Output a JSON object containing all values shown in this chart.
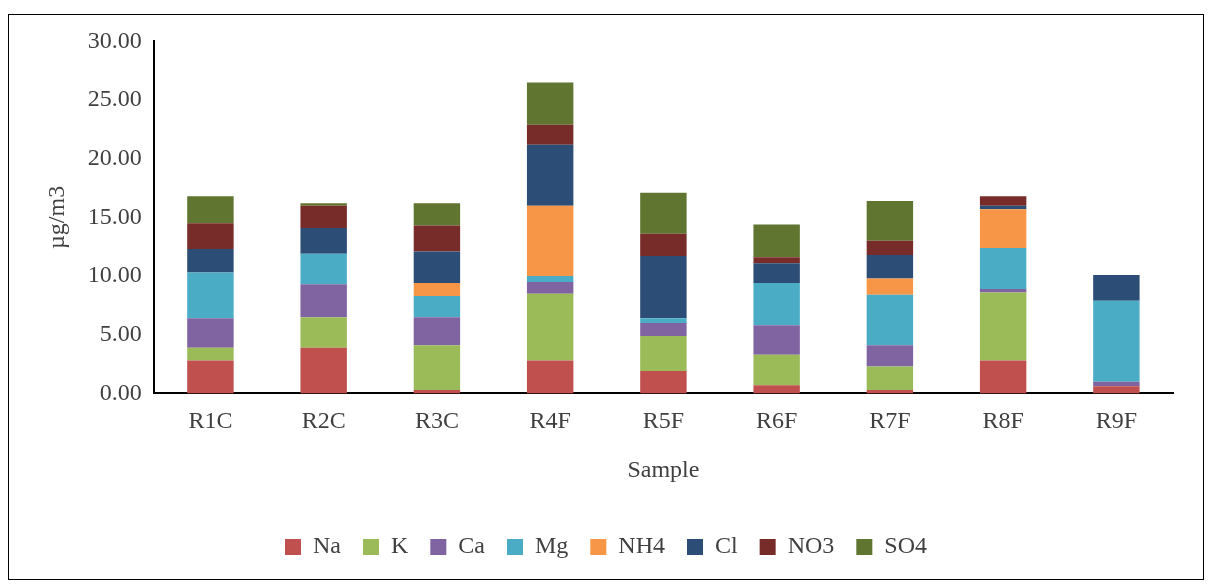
{
  "chart_data": {
    "type": "bar",
    "stacked": true,
    "xlabel": "Sample",
    "ylabel": "µg/m3",
    "categories": [
      "R1C",
      "R2C",
      "R3C",
      "R4F",
      "R5F",
      "R6F",
      "R7F",
      "R8F",
      "R9F"
    ],
    "ylim": [
      0,
      30
    ],
    "yticks": [
      {
        "value": 0,
        "label": "0.00"
      },
      {
        "value": 5,
        "label": "5.00"
      },
      {
        "value": 10,
        "label": "10.00"
      },
      {
        "value": 15,
        "label": "15.00"
      },
      {
        "value": 20,
        "label": "20.00"
      },
      {
        "value": 25,
        "label": "25.00"
      },
      {
        "value": 30,
        "label": "30.00"
      }
    ],
    "grid": false,
    "legend": "bottom",
    "series": [
      {
        "name": "Na",
        "color": "#c0504d",
        "values": [
          2.8,
          3.9,
          0.3,
          2.8,
          1.9,
          0.7,
          0.3,
          2.8,
          0.6
        ]
      },
      {
        "name": "K",
        "color": "#9bbb59",
        "values": [
          1.1,
          2.6,
          3.8,
          5.7,
          3.0,
          2.6,
          2.0,
          5.8,
          0
        ]
      },
      {
        "name": "Ca",
        "color": "#8064a2",
        "values": [
          2.5,
          2.8,
          2.4,
          1.0,
          1.1,
          2.5,
          1.8,
          0.3,
          0.4
        ]
      },
      {
        "name": "Mg",
        "color": "#4bacc6",
        "values": [
          3.9,
          2.6,
          1.8,
          0.5,
          0.4,
          3.6,
          4.3,
          3.5,
          6.9
        ]
      },
      {
        "name": "NH4",
        "color": "#f79646",
        "values": [
          0,
          0,
          1.1,
          6.0,
          0,
          0,
          1.4,
          3.3,
          0
        ]
      },
      {
        "name": "Cl",
        "color": "#2c4d75",
        "values": [
          2.0,
          2.2,
          2.7,
          5.2,
          5.3,
          1.7,
          2.0,
          0.3,
          2.2
        ]
      },
      {
        "name": "NO3",
        "color": "#772c2a",
        "values": [
          2.2,
          1.9,
          2.2,
          1.7,
          1.9,
          0.5,
          1.2,
          0.8,
          0
        ]
      },
      {
        "name": "SO4",
        "color": "#5f7530",
        "values": [
          2.3,
          0.2,
          1.9,
          3.6,
          3.5,
          2.8,
          3.4,
          0,
          0
        ]
      }
    ]
  }
}
